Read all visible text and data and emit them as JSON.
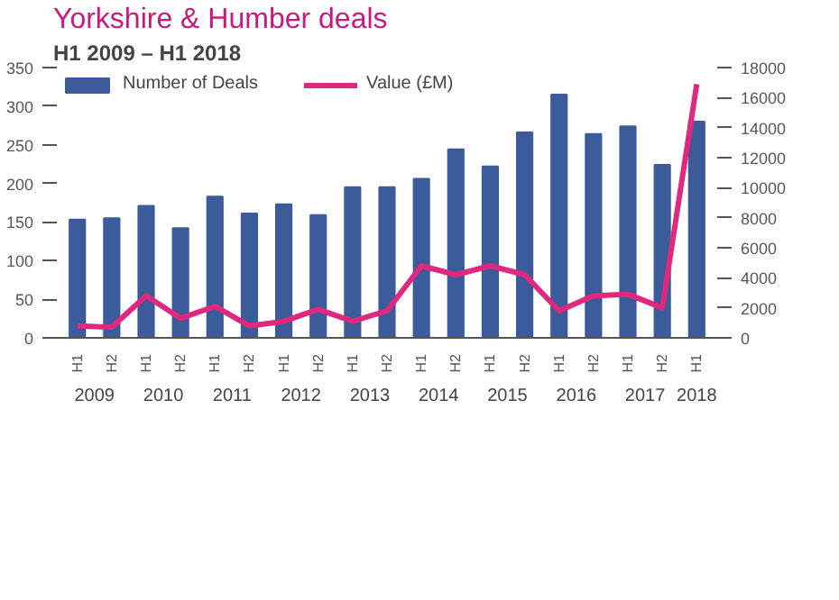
{
  "chart_data": {
    "type": "bar",
    "title": "Yorkshire & Humber deals",
    "subtitle": "H1 2009 – H1 2018",
    "categories": [
      "H1",
      "H2",
      "H1",
      "H2",
      "H1",
      "H2",
      "H1",
      "H2",
      "H1",
      "H2",
      "H1",
      "H2",
      "H1",
      "H2",
      "H1",
      "H2",
      "H1",
      "H2",
      "H1"
    ],
    "annotations": [
      "2009",
      "2010",
      "2011",
      "2012",
      "2013",
      "2014",
      "2015",
      "2016",
      "2017",
      "2018"
    ],
    "series": [
      {
        "name": "Number of Deals",
        "color": "#3b5b9a",
        "values": [
          153,
          155,
          171,
          142,
          183,
          161,
          173,
          159,
          195,
          195,
          206,
          244,
          222,
          266,
          315,
          264,
          274,
          224,
          280
        ]
      },
      {
        "name": "Value (£M)",
        "type": "line",
        "axis": "y2",
        "color": "#e0287f",
        "values": [
          800,
          700,
          2800,
          1300,
          2100,
          800,
          1100,
          1900,
          1100,
          1800,
          4800,
          4200,
          4800,
          4200,
          1800,
          2800,
          2900,
          2000,
          16900
        ]
      }
    ],
    "ylim": [
      0,
      350
    ],
    "yticks": [
      0,
      50,
      100,
      150,
      200,
      250,
      300,
      350
    ],
    "y2lim": [
      0,
      18000
    ],
    "y2ticks": [
      0,
      2000,
      4000,
      6000,
      8000,
      10000,
      12000,
      14000,
      16000,
      18000
    ],
    "grid": false,
    "legend": "top left"
  }
}
